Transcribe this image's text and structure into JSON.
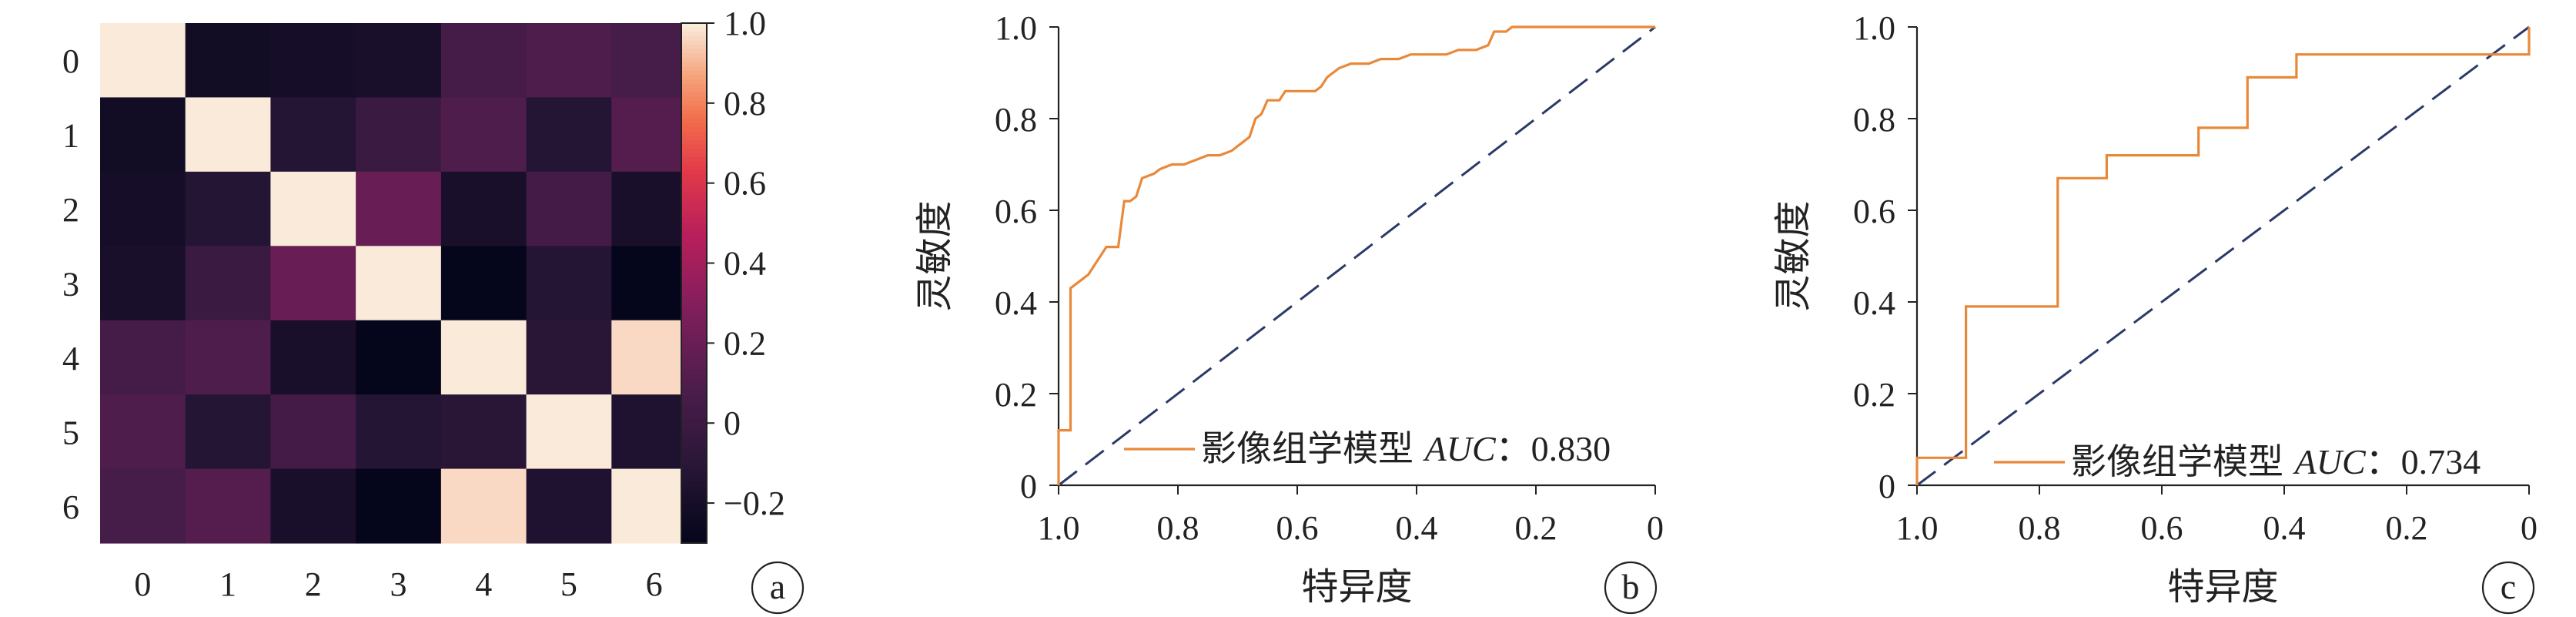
{
  "chart_data": [
    {
      "type": "heatmap",
      "panel_label": "a",
      "x_categories": [
        "0",
        "1",
        "2",
        "3",
        "4",
        "5",
        "6"
      ],
      "y_categories": [
        "0",
        "1",
        "2",
        "3",
        "4",
        "5",
        "6"
      ],
      "values": [
        [
          1.0,
          -0.22,
          -0.2,
          -0.18,
          0.05,
          0.1,
          0.06
        ],
        [
          -0.22,
          1.0,
          -0.12,
          0.0,
          0.1,
          -0.12,
          0.12
        ],
        [
          -0.2,
          -0.12,
          1.0,
          0.2,
          -0.18,
          0.04,
          -0.18
        ],
        [
          -0.18,
          0.0,
          0.2,
          1.0,
          -0.29,
          -0.12,
          -0.29
        ],
        [
          0.05,
          0.1,
          -0.18,
          -0.29,
          1.0,
          -0.1,
          0.97
        ],
        [
          0.1,
          -0.12,
          0.04,
          -0.12,
          -0.1,
          1.0,
          -0.15
        ],
        [
          0.06,
          0.12,
          -0.18,
          -0.29,
          0.97,
          -0.15,
          1.0
        ]
      ],
      "colorbar": {
        "min": -0.3,
        "max": 1.0,
        "ticks": [
          "1.0",
          "0.8",
          "0.6",
          "0.4",
          "0.2",
          "0",
          "-0.2"
        ],
        "tick_values": [
          1.0,
          0.8,
          0.6,
          0.4,
          0.2,
          0,
          -0.2
        ]
      }
    },
    {
      "type": "line",
      "panel_label": "b",
      "xlabel": "特异度",
      "ylabel": "灵敏度",
      "xlim": [
        1.0,
        0
      ],
      "ylim": [
        0,
        1.0
      ],
      "x_ticks": [
        "1.0",
        "0.8",
        "0.6",
        "0.4",
        "0.2",
        "0"
      ],
      "x_tick_values": [
        1.0,
        0.8,
        0.6,
        0.4,
        0.2,
        0
      ],
      "y_ticks": [
        "0",
        "0.2",
        "0.4",
        "0.6",
        "0.8",
        "1.0"
      ],
      "y_tick_values": [
        0,
        0.2,
        0.4,
        0.6,
        0.8,
        1.0
      ],
      "series": [
        {
          "name": "影像组学模型",
          "legend_suffix": "AUC：0.830",
          "color": "#e8893a",
          "points": [
            [
              1.0,
              0
            ],
            [
              1.0,
              0.12
            ],
            [
              0.98,
              0.12
            ],
            [
              0.98,
              0.43
            ],
            [
              0.97,
              0.44
            ],
            [
              0.96,
              0.45
            ],
            [
              0.95,
              0.46
            ],
            [
              0.94,
              0.48
            ],
            [
              0.93,
              0.5
            ],
            [
              0.92,
              0.52
            ],
            [
              0.9,
              0.52
            ],
            [
              0.89,
              0.62
            ],
            [
              0.88,
              0.62
            ],
            [
              0.87,
              0.63
            ],
            [
              0.86,
              0.67
            ],
            [
              0.84,
              0.68
            ],
            [
              0.83,
              0.69
            ],
            [
              0.81,
              0.7
            ],
            [
              0.79,
              0.7
            ],
            [
              0.77,
              0.71
            ],
            [
              0.75,
              0.72
            ],
            [
              0.73,
              0.72
            ],
            [
              0.71,
              0.73
            ],
            [
              0.7,
              0.74
            ],
            [
              0.69,
              0.75
            ],
            [
              0.68,
              0.76
            ],
            [
              0.67,
              0.8
            ],
            [
              0.66,
              0.81
            ],
            [
              0.65,
              0.84
            ],
            [
              0.63,
              0.84
            ],
            [
              0.62,
              0.86
            ],
            [
              0.6,
              0.86
            ],
            [
              0.57,
              0.86
            ],
            [
              0.56,
              0.87
            ],
            [
              0.55,
              0.89
            ],
            [
              0.53,
              0.91
            ],
            [
              0.51,
              0.92
            ],
            [
              0.48,
              0.92
            ],
            [
              0.46,
              0.93
            ],
            [
              0.43,
              0.93
            ],
            [
              0.41,
              0.94
            ],
            [
              0.35,
              0.94
            ],
            [
              0.33,
              0.95
            ],
            [
              0.3,
              0.95
            ],
            [
              0.28,
              0.96
            ],
            [
              0.27,
              0.99
            ],
            [
              0.25,
              0.99
            ],
            [
              0.24,
              1.0
            ],
            [
              0.0,
              1.0
            ]
          ]
        },
        {
          "role": "reference",
          "color": "#2b3a67",
          "dash": true,
          "points": [
            [
              1.0,
              0
            ],
            [
              0.0,
              1.0
            ]
          ]
        }
      ],
      "legend": {
        "position": "bottom-right"
      }
    },
    {
      "type": "line",
      "panel_label": "c",
      "xlabel": "特异度",
      "ylabel": "灵敏度",
      "xlim": [
        1.0,
        0
      ],
      "ylim": [
        0,
        1.0
      ],
      "x_ticks": [
        "1.0",
        "0.8",
        "0.6",
        "0.4",
        "0.2",
        "0"
      ],
      "x_tick_values": [
        1.0,
        0.8,
        0.6,
        0.4,
        0.2,
        0
      ],
      "y_ticks": [
        "0",
        "0.2",
        "0.4",
        "0.6",
        "0.8",
        "1.0"
      ],
      "y_tick_values": [
        0,
        0.2,
        0.4,
        0.6,
        0.8,
        1.0
      ],
      "series": [
        {
          "name": "影像组学模型",
          "legend_suffix": "AUC：0.734",
          "color": "#e8893a",
          "points": [
            [
              1.0,
              0
            ],
            [
              1.0,
              0.06
            ],
            [
              0.92,
              0.06
            ],
            [
              0.92,
              0.39
            ],
            [
              0.77,
              0.39
            ],
            [
              0.77,
              0.67
            ],
            [
              0.69,
              0.67
            ],
            [
              0.69,
              0.72
            ],
            [
              0.54,
              0.72
            ],
            [
              0.54,
              0.78
            ],
            [
              0.46,
              0.78
            ],
            [
              0.46,
              0.89
            ],
            [
              0.38,
              0.89
            ],
            [
              0.38,
              0.94
            ],
            [
              0.0,
              0.94
            ],
            [
              0.0,
              1.0
            ]
          ]
        },
        {
          "role": "reference",
          "color": "#2b3a67",
          "dash": true,
          "points": [
            [
              1.0,
              0
            ],
            [
              0.0,
              1.0
            ]
          ]
        }
      ],
      "legend": {
        "position": "bottom-right"
      }
    }
  ]
}
